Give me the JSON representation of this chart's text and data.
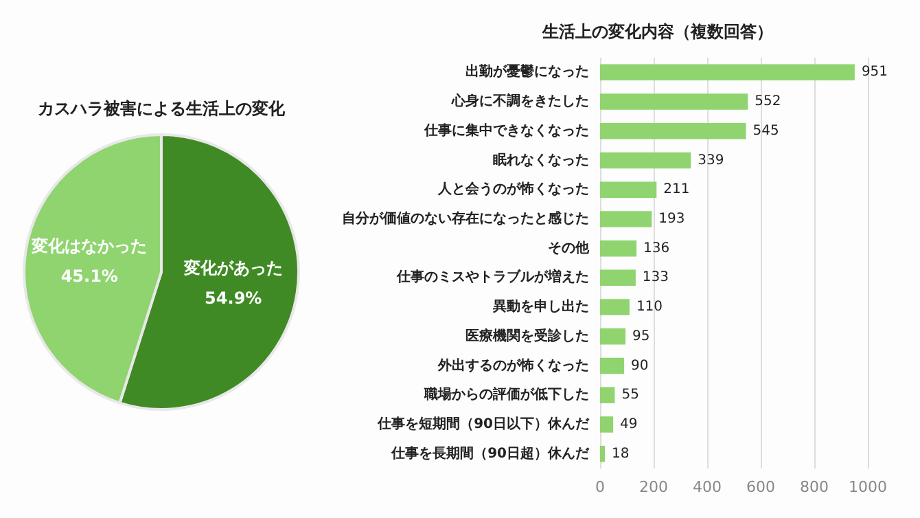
{
  "chart_data": [
    {
      "type": "pie",
      "title": "カスハラ被害による生活上の変化",
      "categories": [
        "変化があった",
        "変化はなかった"
      ],
      "values": [
        54.9,
        45.1
      ],
      "value_labels": [
        "54.9%",
        "45.1%"
      ],
      "colors": [
        "#3f8a24",
        "#8fd46f"
      ],
      "legend": false
    },
    {
      "type": "bar",
      "orientation": "horizontal",
      "title": "生活上の変化内容（複数回答）",
      "categories": [
        "出勤が憂鬱になった",
        "心身に不調をきたした",
        "仕事に集中できなくなった",
        "眠れなくなった",
        "人と会うのが怖くなった",
        "自分が価値のない存在になったと感じた",
        "その他",
        "仕事のミスやトラブルが増えた",
        "異動を申し出た",
        "医療機関を受診した",
        "外出するのが怖くなった",
        "職場からの評価が低下した",
        "仕事を短期間（90日以下）休んだ",
        "仕事を長期間（90日超）休んだ"
      ],
      "values": [
        951,
        552,
        545,
        339,
        211,
        193,
        136,
        133,
        110,
        95,
        90,
        55,
        49,
        18
      ],
      "color": "#8fd46f",
      "xlim": [
        0,
        1000
      ],
      "xticks": [
        0,
        200,
        400,
        600,
        800,
        1000
      ],
      "grid": "x",
      "data_labels": true,
      "legend": false
    }
  ]
}
